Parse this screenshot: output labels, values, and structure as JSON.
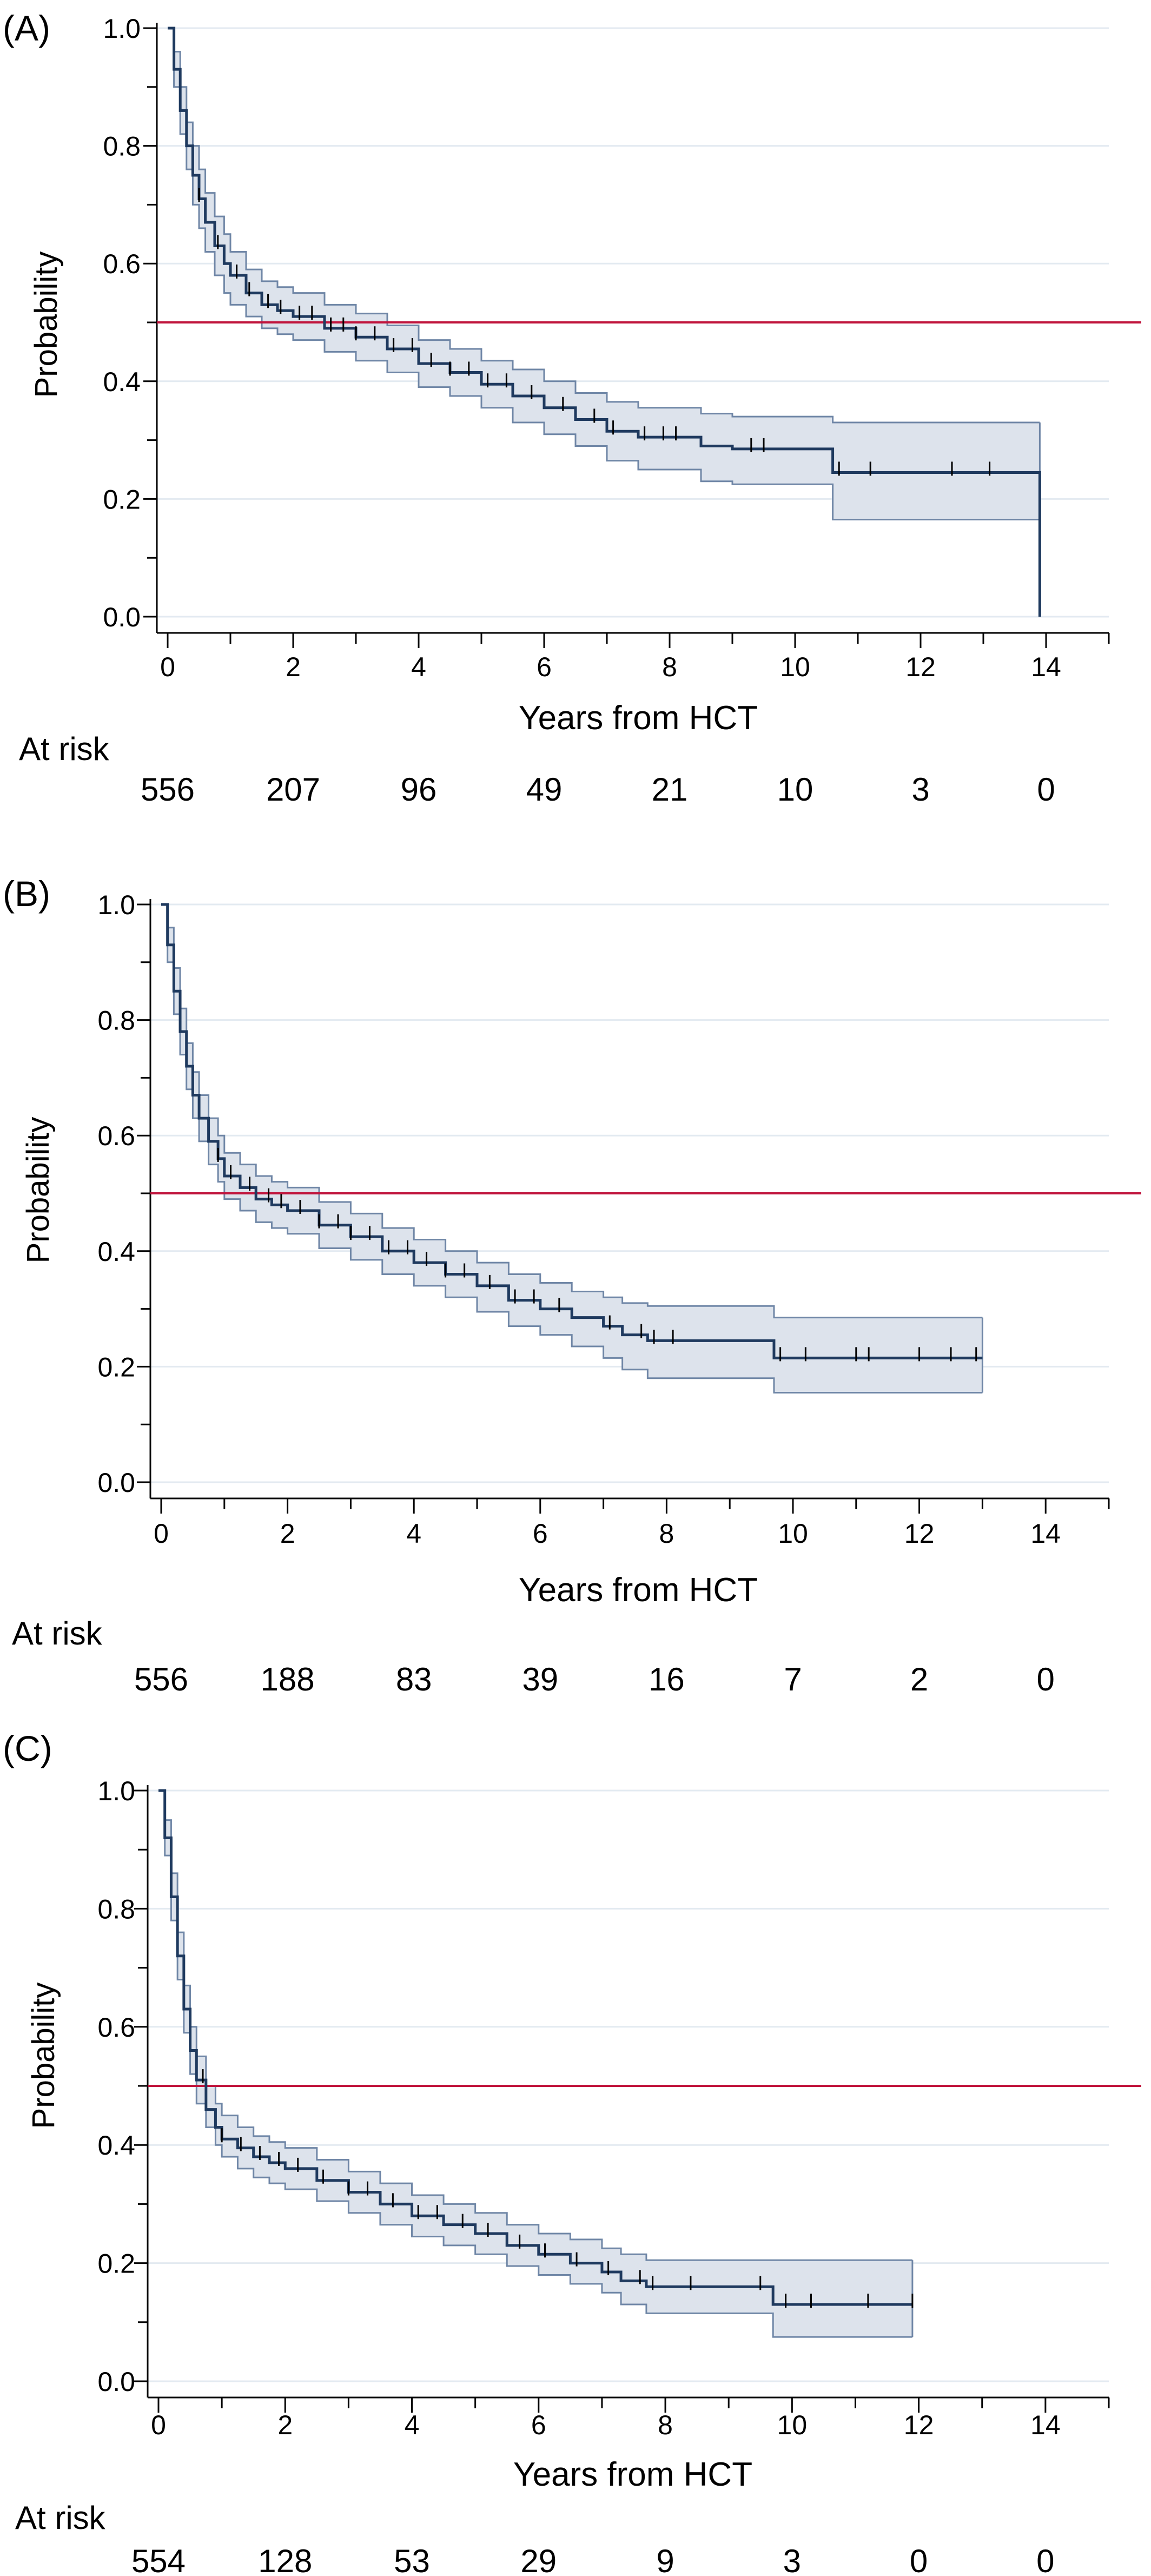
{
  "chart_data": [
    {
      "type": "line",
      "panel_label": "(A)",
      "xlabel": "Years from HCT",
      "ylabel": "Probability",
      "xlim": [
        0,
        15
      ],
      "ylim": [
        0,
        1.0
      ],
      "x_ticks": [
        0,
        2,
        4,
        6,
        8,
        10,
        12,
        14
      ],
      "x_tick_labels": [
        "0",
        "2",
        "4",
        "6",
        "8",
        "10",
        "12",
        "14"
      ],
      "y_ticks": [
        0.0,
        0.2,
        0.4,
        0.6,
        0.8,
        1.0
      ],
      "y_tick_labels": [
        "0.0",
        "0.2",
        "0.4",
        "0.6",
        "0.8",
        "1.0"
      ],
      "grid": true,
      "reference_line": {
        "y": 0.5,
        "color": "#c0143c"
      },
      "colors": {
        "curve": "#1f3a5f",
        "band_fill": "#dde3ec",
        "band_edge": "#6f86a6"
      },
      "series": [
        {
          "x": [
            0,
            0.1,
            0.2,
            0.3,
            0.4,
            0.5,
            0.6,
            0.75,
            0.9,
            1.0,
            1.25,
            1.5,
            1.75,
            2.0,
            2.5,
            3.0,
            3.5,
            4.0,
            4.5,
            5.0,
            5.5,
            6.0,
            6.5,
            7.0,
            7.5,
            8.5,
            9.0,
            10.6,
            11.0,
            12.0,
            13.0,
            13.9,
            13.9
          ],
          "y": [
            1.0,
            0.93,
            0.86,
            0.8,
            0.75,
            0.71,
            0.67,
            0.63,
            0.6,
            0.58,
            0.55,
            0.53,
            0.52,
            0.51,
            0.49,
            0.475,
            0.455,
            0.43,
            0.415,
            0.395,
            0.375,
            0.355,
            0.335,
            0.315,
            0.305,
            0.29,
            0.285,
            0.245,
            0.245,
            0.245,
            0.245,
            0.245,
            0.0
          ],
          "lower": [
            1.0,
            0.9,
            0.82,
            0.76,
            0.7,
            0.66,
            0.62,
            0.58,
            0.55,
            0.53,
            0.51,
            0.49,
            0.48,
            0.47,
            0.45,
            0.435,
            0.415,
            0.39,
            0.375,
            0.355,
            0.33,
            0.31,
            0.29,
            0.265,
            0.25,
            0.23,
            0.225,
            0.165,
            0.165,
            0.165,
            0.165,
            0.165,
            null
          ],
          "upper": [
            1.0,
            0.96,
            0.9,
            0.84,
            0.8,
            0.76,
            0.72,
            0.68,
            0.65,
            0.62,
            0.59,
            0.57,
            0.56,
            0.55,
            0.53,
            0.515,
            0.495,
            0.47,
            0.455,
            0.435,
            0.42,
            0.4,
            0.38,
            0.365,
            0.355,
            0.345,
            0.34,
            0.33,
            0.33,
            0.33,
            0.33,
            0.33,
            null
          ],
          "censor_x": [
            0.5,
            0.8,
            1.1,
            1.3,
            1.6,
            1.8,
            2.1,
            2.3,
            2.6,
            2.8,
            3.0,
            3.3,
            3.6,
            3.9,
            4.2,
            4.5,
            4.8,
            5.1,
            5.4,
            5.8,
            6.3,
            6.8,
            7.1,
            7.6,
            7.9,
            8.1,
            9.3,
            9.5,
            10.7,
            11.2,
            12.5,
            13.1
          ]
        }
      ],
      "at_risk": {
        "label": "At risk",
        "times": [
          0,
          2,
          4,
          6,
          8,
          10,
          12,
          14
        ],
        "counts": [
          "556",
          "207",
          "96",
          "49",
          "21",
          "10",
          "3",
          "0"
        ]
      }
    },
    {
      "type": "line",
      "panel_label": "(B)",
      "xlabel": "Years from HCT",
      "ylabel": "Probability",
      "xlim": [
        0,
        15
      ],
      "ylim": [
        0,
        1.0
      ],
      "x_ticks": [
        0,
        2,
        4,
        6,
        8,
        10,
        12,
        14
      ],
      "x_tick_labels": [
        "0",
        "2",
        "4",
        "6",
        "8",
        "10",
        "12",
        "14"
      ],
      "y_ticks": [
        0.0,
        0.2,
        0.4,
        0.6,
        0.8,
        1.0
      ],
      "y_tick_labels": [
        "0.0",
        "0.2",
        "0.4",
        "0.6",
        "0.8",
        "1.0"
      ],
      "grid": true,
      "reference_line": {
        "y": 0.5,
        "color": "#c0143c"
      },
      "colors": {
        "curve": "#1f3a5f",
        "band_fill": "#dde3ec",
        "band_edge": "#6f86a6"
      },
      "series": [
        {
          "x": [
            0,
            0.1,
            0.2,
            0.3,
            0.4,
            0.5,
            0.6,
            0.75,
            0.9,
            1.0,
            1.25,
            1.5,
            1.75,
            2.0,
            2.5,
            3.0,
            3.5,
            4.0,
            4.5,
            5.0,
            5.5,
            6.0,
            6.5,
            7.0,
            7.3,
            7.7,
            9.7,
            10.0,
            12.0,
            13.0
          ],
          "y": [
            1.0,
            0.93,
            0.85,
            0.78,
            0.72,
            0.67,
            0.63,
            0.59,
            0.56,
            0.53,
            0.51,
            0.49,
            0.48,
            0.47,
            0.445,
            0.425,
            0.4,
            0.38,
            0.36,
            0.34,
            0.315,
            0.3,
            0.285,
            0.27,
            0.255,
            0.245,
            0.215,
            0.215,
            0.215,
            0.215
          ],
          "lower": [
            1.0,
            0.9,
            0.81,
            0.74,
            0.68,
            0.63,
            0.59,
            0.55,
            0.52,
            0.49,
            0.47,
            0.45,
            0.44,
            0.43,
            0.405,
            0.385,
            0.36,
            0.34,
            0.32,
            0.295,
            0.27,
            0.255,
            0.235,
            0.215,
            0.195,
            0.18,
            0.155,
            0.155,
            0.155,
            0.155
          ],
          "upper": [
            1.0,
            0.96,
            0.89,
            0.82,
            0.76,
            0.71,
            0.67,
            0.63,
            0.6,
            0.57,
            0.55,
            0.53,
            0.52,
            0.51,
            0.485,
            0.465,
            0.44,
            0.42,
            0.4,
            0.38,
            0.36,
            0.345,
            0.33,
            0.32,
            0.31,
            0.305,
            0.285,
            0.285,
            0.285,
            0.285
          ],
          "censor_x": [
            0.9,
            1.1,
            1.4,
            1.7,
            1.9,
            2.2,
            2.5,
            2.8,
            3.0,
            3.3,
            3.6,
            3.9,
            4.2,
            4.5,
            4.8,
            5.2,
            5.6,
            5.9,
            6.3,
            7.1,
            7.6,
            7.8,
            8.1,
            9.8,
            10.2,
            11.0,
            11.2,
            12.0,
            12.5,
            12.9
          ]
        }
      ],
      "at_risk": {
        "label": "At risk",
        "times": [
          0,
          2,
          4,
          6,
          8,
          10,
          12,
          14
        ],
        "counts": [
          "556",
          "188",
          "83",
          "39",
          "16",
          "7",
          "2",
          "0"
        ]
      }
    },
    {
      "type": "line",
      "panel_label": "(C)",
      "xlabel": "Years from HCT",
      "ylabel": "Probability",
      "xlim": [
        0,
        15
      ],
      "ylim": [
        0,
        1.0
      ],
      "x_ticks": [
        0,
        2,
        4,
        6,
        8,
        10,
        12,
        14
      ],
      "x_tick_labels": [
        "0",
        "2",
        "4",
        "6",
        "8",
        "10",
        "12",
        "14"
      ],
      "y_ticks": [
        0.0,
        0.2,
        0.4,
        0.6,
        0.8,
        1.0
      ],
      "y_tick_labels": [
        "0.0",
        "0.2",
        "0.4",
        "0.6",
        "0.8",
        "1.0"
      ],
      "grid": true,
      "reference_line": {
        "y": 0.5,
        "color": "#c0143c"
      },
      "colors": {
        "curve": "#1f3a5f",
        "band_fill": "#dde3ec",
        "band_edge": "#6f86a6"
      },
      "series": [
        {
          "x": [
            0,
            0.1,
            0.2,
            0.3,
            0.4,
            0.5,
            0.6,
            0.75,
            0.9,
            1.0,
            1.25,
            1.5,
            1.75,
            2.0,
            2.5,
            3.0,
            3.5,
            4.0,
            4.5,
            5.0,
            5.5,
            6.0,
            6.5,
            7.0,
            7.3,
            7.7,
            9.7,
            10.0,
            11.0,
            11.9
          ],
          "y": [
            1.0,
            0.92,
            0.82,
            0.72,
            0.63,
            0.56,
            0.51,
            0.46,
            0.43,
            0.41,
            0.395,
            0.38,
            0.37,
            0.36,
            0.34,
            0.32,
            0.3,
            0.28,
            0.265,
            0.25,
            0.23,
            0.215,
            0.2,
            0.185,
            0.17,
            0.16,
            0.13,
            0.13,
            0.13,
            0.13
          ],
          "lower": [
            1.0,
            0.89,
            0.78,
            0.68,
            0.59,
            0.52,
            0.47,
            0.43,
            0.4,
            0.38,
            0.36,
            0.345,
            0.335,
            0.325,
            0.305,
            0.285,
            0.265,
            0.245,
            0.23,
            0.215,
            0.195,
            0.18,
            0.165,
            0.15,
            0.13,
            0.115,
            0.075,
            0.075,
            0.075,
            0.075
          ],
          "upper": [
            1.0,
            0.95,
            0.86,
            0.76,
            0.67,
            0.6,
            0.55,
            0.5,
            0.47,
            0.45,
            0.43,
            0.415,
            0.405,
            0.395,
            0.375,
            0.355,
            0.335,
            0.315,
            0.3,
            0.285,
            0.265,
            0.25,
            0.24,
            0.225,
            0.215,
            0.205,
            0.205,
            0.205,
            0.205,
            0.205
          ],
          "censor_x": [
            0.7,
            1.0,
            1.3,
            1.6,
            1.9,
            2.2,
            2.6,
            3.0,
            3.3,
            3.7,
            4.1,
            4.4,
            4.8,
            5.2,
            5.7,
            6.1,
            6.6,
            7.1,
            7.6,
            7.8,
            8.4,
            9.5,
            9.9,
            10.3,
            11.2,
            11.9
          ]
        }
      ],
      "at_risk": {
        "label": "At risk",
        "times": [
          0,
          2,
          4,
          6,
          8,
          10,
          12,
          14
        ],
        "counts": [
          "554",
          "128",
          "53",
          "29",
          "9",
          "3",
          "0",
          "0"
        ]
      }
    }
  ]
}
